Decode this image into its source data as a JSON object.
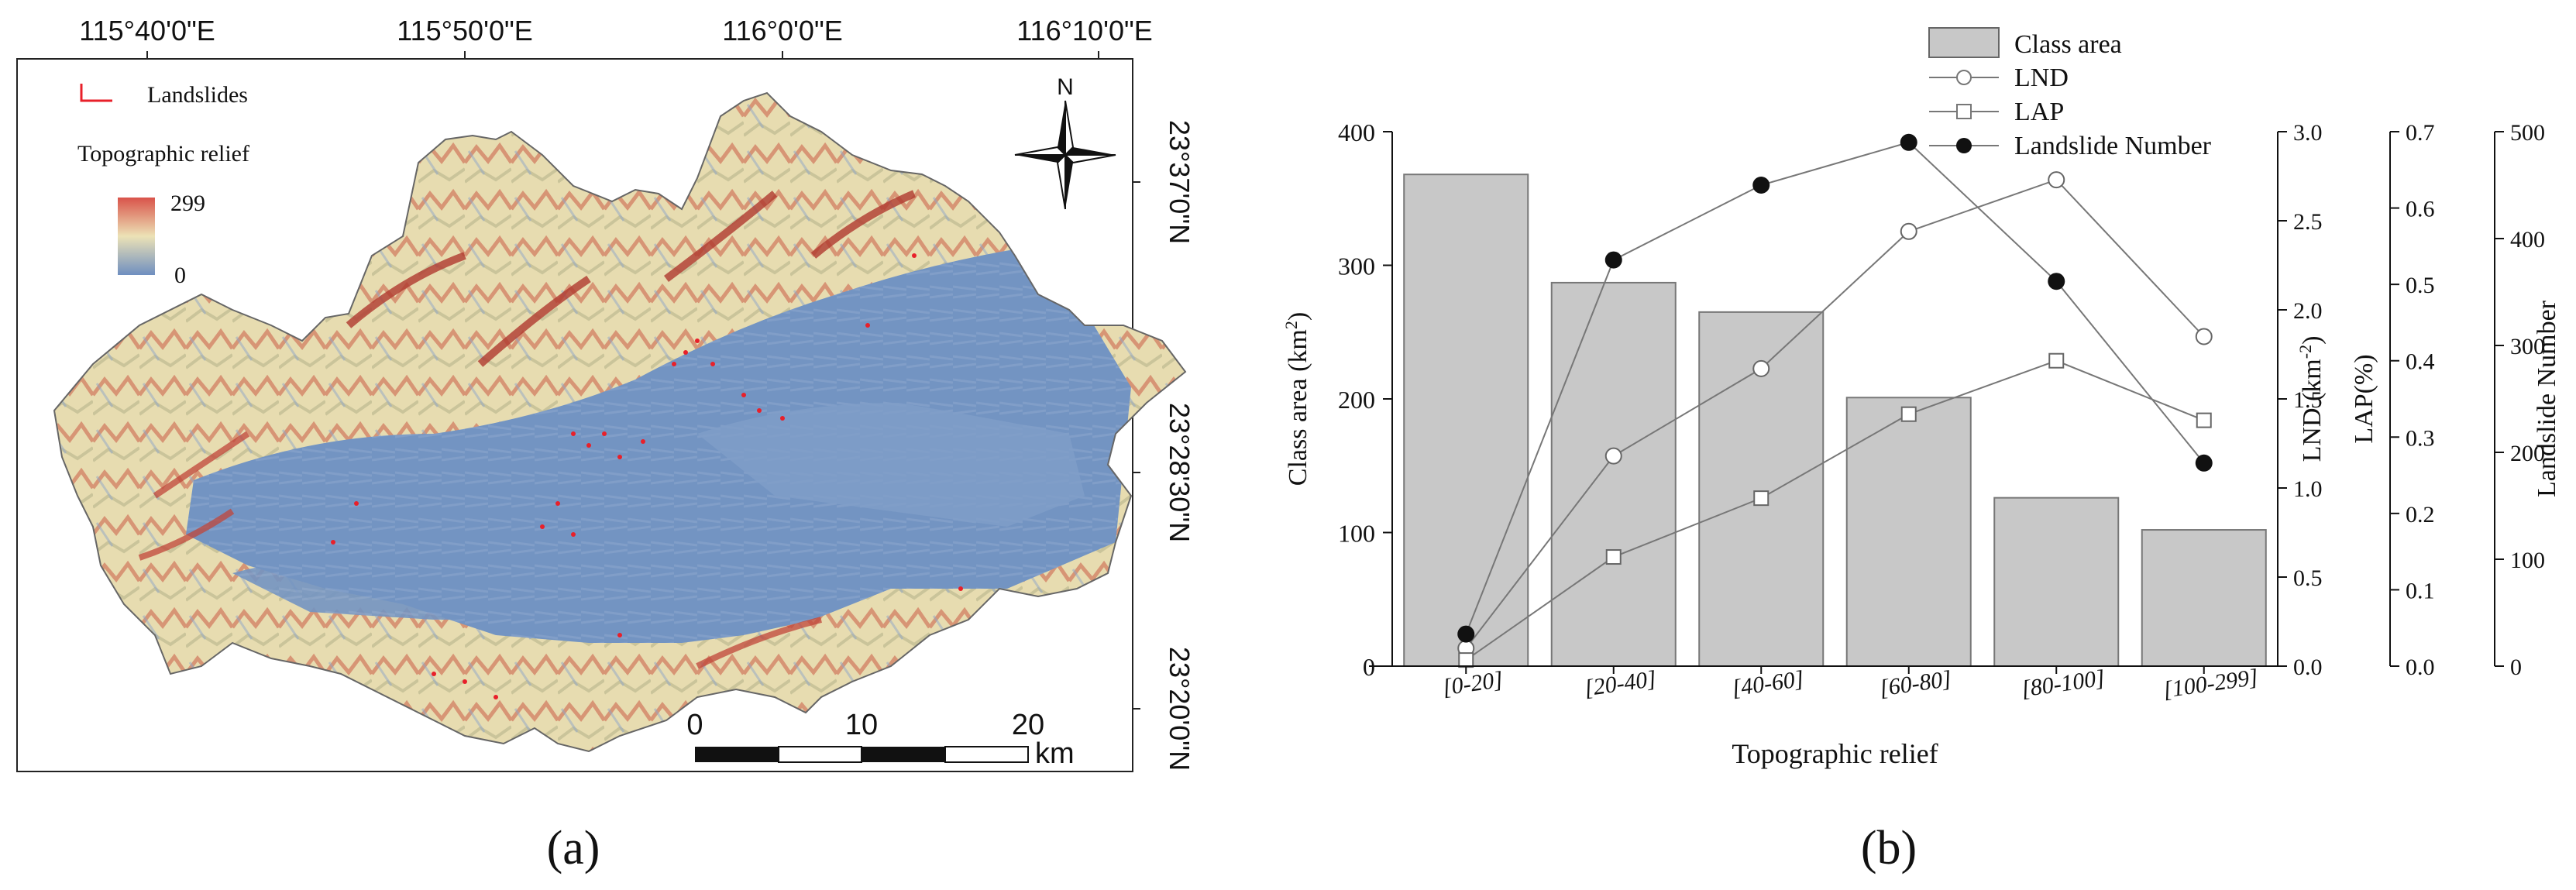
{
  "map": {
    "lon_ticks": [
      "115°40'0\"E",
      "115°50'0\"E",
      "116°0'0\"E",
      "116°10'0\"E"
    ],
    "lat_ticks": [
      "23°37'0\"N",
      "23°28'30\"N",
      "23°20'0\"N"
    ],
    "legend_landslides": "Landslides",
    "legend_relief_title": "Topographic relief",
    "legend_max": "299",
    "legend_min": "0",
    "north": "N",
    "scale_labels": [
      "0",
      "10",
      "20"
    ],
    "scale_unit": "km",
    "panel_label": "(a)",
    "colors": {
      "low": "#6f8fbf",
      "mid": "#e9e1b3",
      "high": "#c44a3c",
      "landslide": "#e8202a"
    }
  },
  "chart_panel_label": "(b)",
  "chart_data": {
    "type": "bar+line",
    "categories": [
      "[0-20]",
      "[20-40]",
      "[40-60]",
      "[60-80]",
      "[80-100]",
      "[100-299]"
    ],
    "xlabel": "Topographic relief",
    "series": [
      {
        "name": "Class area",
        "kind": "bar",
        "axis": "left",
        "values": [
          368,
          287,
          265,
          201,
          126,
          102
        ]
      },
      {
        "name": "LND",
        "kind": "line",
        "marker": "open-circle",
        "axis": "right1",
        "values": [
          0.1,
          1.18,
          1.67,
          2.44,
          2.73,
          1.85
        ]
      },
      {
        "name": "LAP",
        "kind": "line",
        "marker": "open-square",
        "axis": "right2",
        "values": [
          0.008,
          0.143,
          0.22,
          0.33,
          0.4,
          0.322
        ]
      },
      {
        "name": "Landslide Number",
        "kind": "line",
        "marker": "filled-circle",
        "axis": "right3",
        "values": [
          30,
          380,
          450,
          490,
          360,
          190
        ]
      }
    ],
    "axes": {
      "left": {
        "label": "Class area (km²)",
        "label_main": "Class area (km",
        "label_sup": "2",
        "label_end": ")",
        "ylim": [
          0,
          400
        ],
        "ticks": [
          "0",
          "100",
          "200",
          "300",
          "400"
        ]
      },
      "right1": {
        "label": "LND (km⁻²)",
        "label_main": "LND (km",
        "label_sup": "-2",
        "label_end": ")",
        "ylim": [
          0,
          3.0
        ],
        "ticks": [
          "0.0",
          "0.5",
          "1.0",
          "1.5",
          "2.0",
          "2.5",
          "3.0"
        ]
      },
      "right2": {
        "label": "LAP(%)",
        "ylim": [
          0,
          0.7
        ],
        "ticks": [
          "0.0",
          "0.1",
          "0.2",
          "0.3",
          "0.4",
          "0.5",
          "0.6",
          "0.7"
        ]
      },
      "right3": {
        "label": "Landslide Number",
        "ylim": [
          0,
          500
        ],
        "ticks": [
          "0",
          "100",
          "200",
          "300",
          "400",
          "500"
        ]
      }
    },
    "legend": [
      "Class area",
      "LND",
      "LAP",
      "Landslide Number"
    ],
    "legend_position": "top"
  }
}
